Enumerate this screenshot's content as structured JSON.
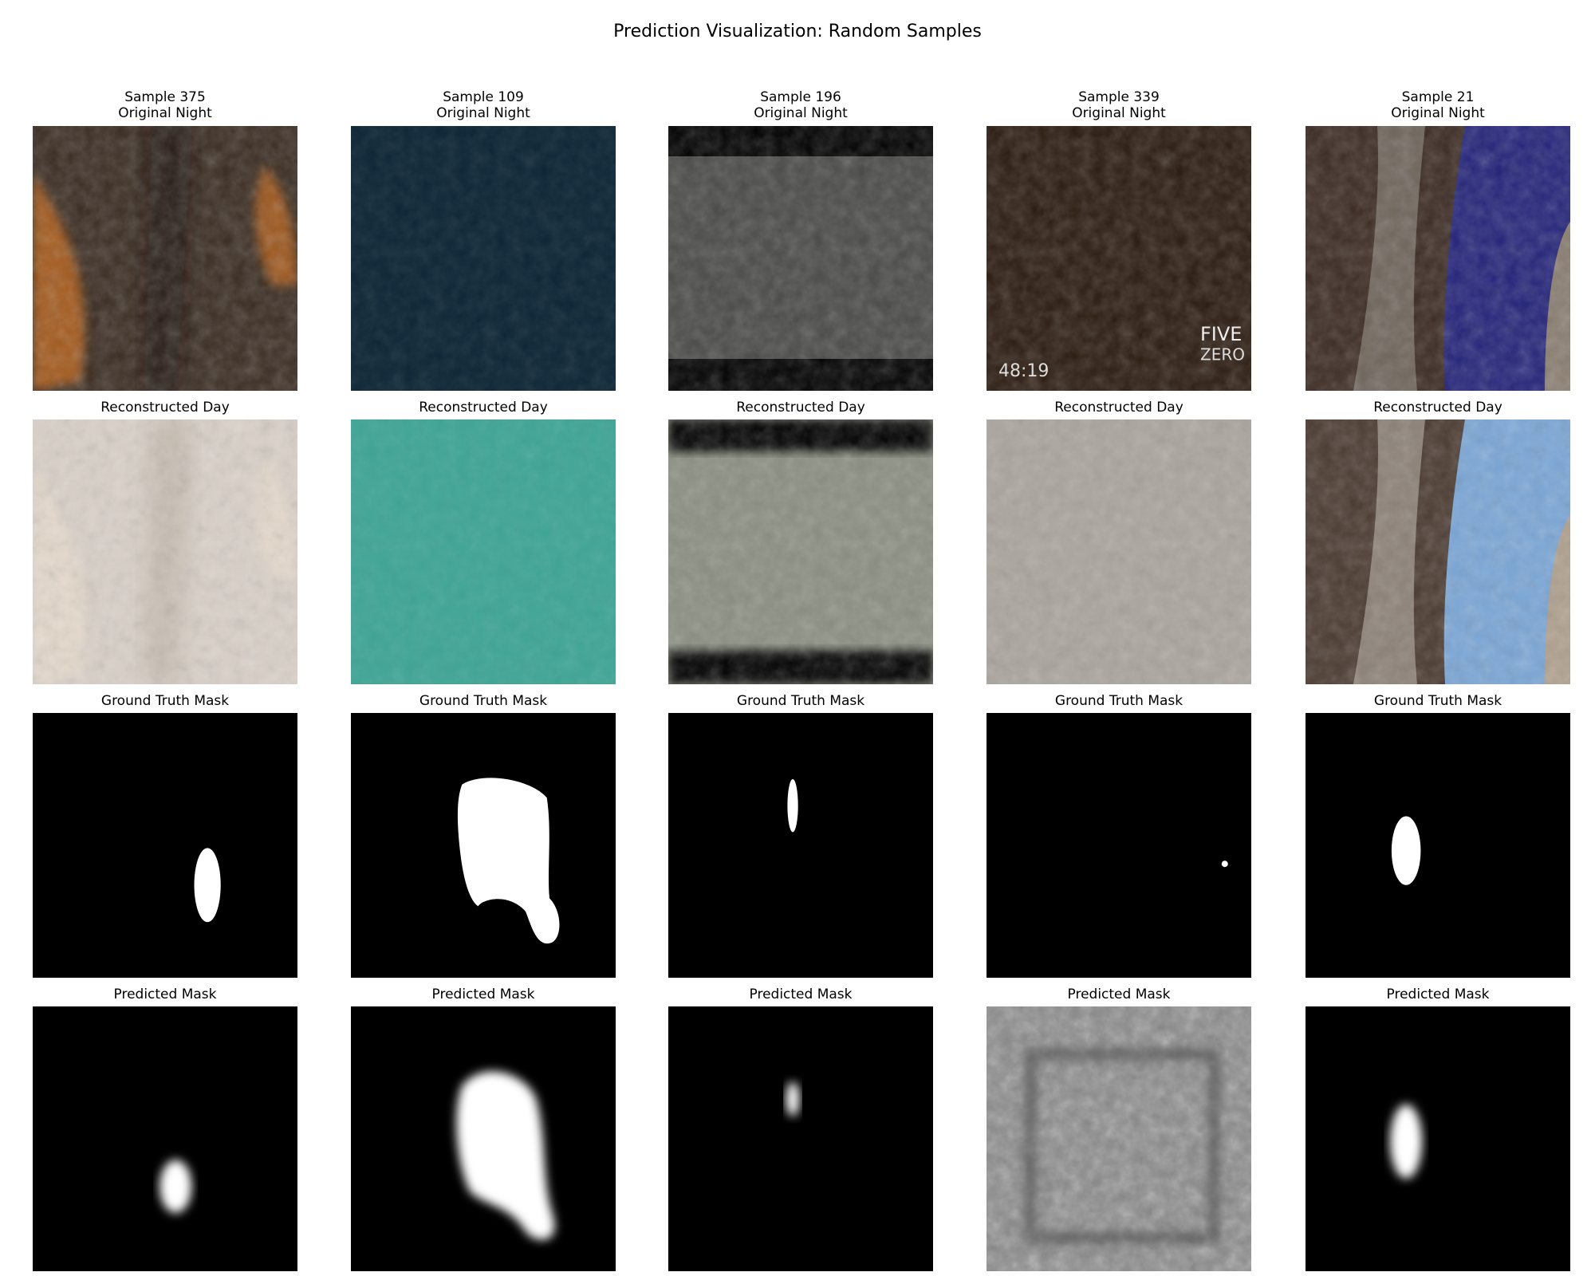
{
  "title": "Prediction Visualization: Random Samples",
  "columns": [
    {
      "sample": "Sample 375",
      "panels": [
        "Original Night",
        "Reconstructed Day",
        "Ground Truth Mask",
        "Predicted Mask"
      ]
    },
    {
      "sample": "Sample 109",
      "panels": [
        "Original Night",
        "Reconstructed Day",
        "Ground Truth Mask",
        "Predicted Mask"
      ]
    },
    {
      "sample": "Sample 196",
      "panels": [
        "Original Night",
        "Reconstructed Day",
        "Ground Truth Mask",
        "Predicted Mask"
      ]
    },
    {
      "sample": "Sample 339",
      "panels": [
        "Original Night",
        "Reconstructed Day",
        "Ground Truth Mask",
        "Predicted Mask"
      ],
      "image_text": [
        "48:19",
        "FIVE",
        "ZERO"
      ]
    },
    {
      "sample": "Sample 21",
      "panels": [
        "Original Night",
        "Reconstructed Day",
        "Ground Truth Mask",
        "Predicted Mask"
      ]
    }
  ]
}
